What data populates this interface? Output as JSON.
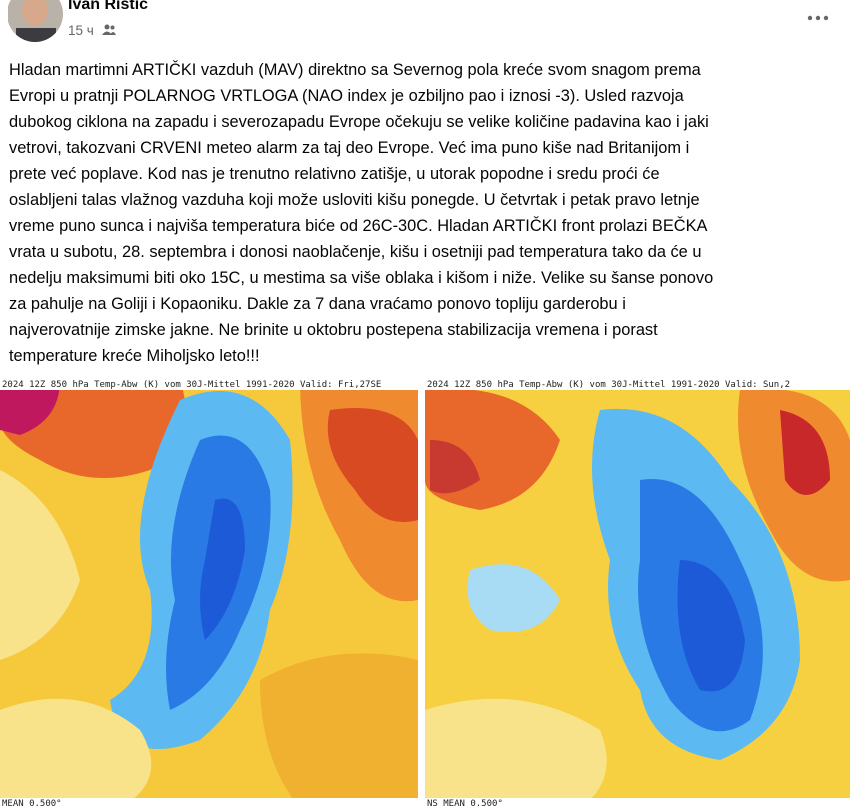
{
  "author": {
    "name": "Ivan Ristic",
    "time": "15 ч"
  },
  "post": {
    "lines": [
      "Hladan martimni ARTIČKI vazduh (MAV) direktno sa Severnog pola kreće svom snagom prema",
      "Evropi u pratnji POLARNOG VRTLOGA (NAO index je ozbiljno pao i iznosi -3). Usled razvoja",
      "dubokog ciklona na zapadu i severozapadu Evrope očekuju se velike količine padavina kao i jaki",
      "vetrovi, takozvani CRVENI meteo alarm za taj deo Evrope. Već ima puno kiše nad Britanijom i",
      "prete već poplave. Kod nas je trenutno relativno zatišje, u utorak popodne i sredu proći će",
      "oslabljeni talas vlažnog vazduha koji može usloviti kišu ponegde. U četvrtak i petak pravo letnje",
      "vreme puno sunca i najviša temperatura biće od 26C-30C. Hladan ARTIČKI front prolazi BEČKA",
      "vrata u subotu, 28. septembra i donosi naoblačenje, kišu i osetniji pad temperatura tako da će u",
      "nedelju maksimumi biti oko 15C, u mestima sa više oblaka i kišom i niže. Velike su šanse ponovo",
      "za pahulje na Goliji i Kopaoniku. Dakle za 7 dana vraćamo ponovo topliju garderobu i",
      "najverovatnije zimske jakne. Ne brinite u oktobru postepena stabilizacija vremena i porast",
      "temperature kreće Miholjsko leto!!!"
    ]
  },
  "maps": [
    {
      "header": "2024 12Z 850 hPa Temp-Abw (K) vom 30J-Mittel 1991-2020 Valid: Fri,27SE",
      "footer": "MEAN 0.500°"
    },
    {
      "header": "2024 12Z 850 hPa Temp-Abw (K) vom 30J-Mittel 1991-2020 Valid: Sun,2",
      "footer": "NS MEAN 0.500°"
    }
  ]
}
